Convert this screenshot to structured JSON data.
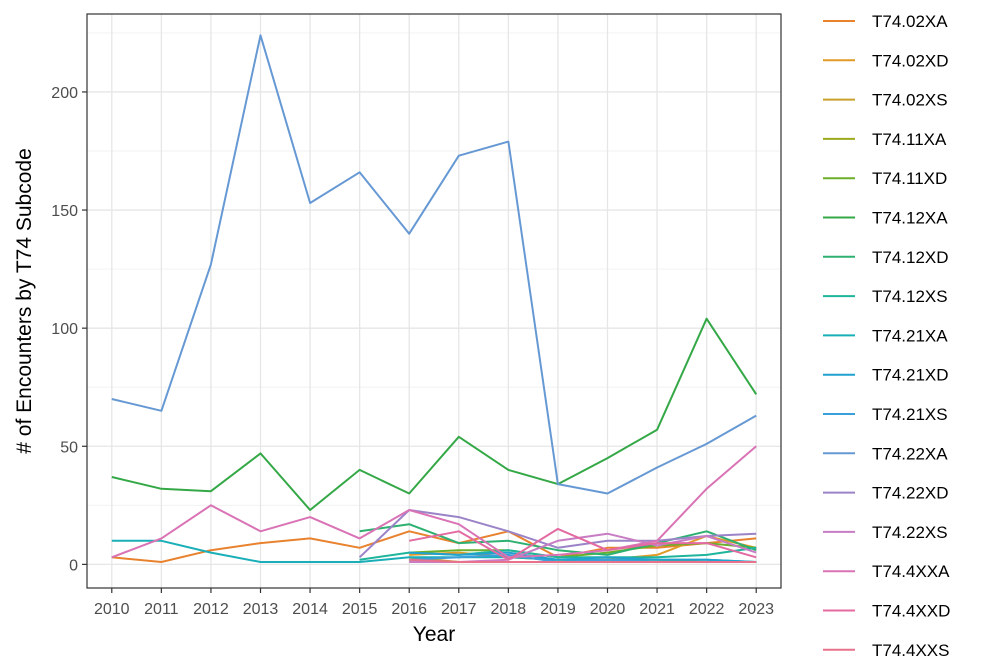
{
  "chart_data": {
    "type": "line",
    "xlabel": "Year",
    "ylabel": "# of Encounters by T74 Subcode",
    "x": [
      2010,
      2011,
      2012,
      2013,
      2014,
      2015,
      2016,
      2017,
      2018,
      2019,
      2020,
      2021,
      2022,
      2023
    ],
    "xlim": [
      2009.5,
      2023.5
    ],
    "ylim": [
      -10,
      233
    ],
    "yticks": [
      0,
      50,
      100,
      150,
      200
    ],
    "grid": true,
    "legend_position": "right",
    "series": [
      {
        "name": "T74.02XA",
        "color": "#E8822F",
        "values": [
          3,
          1,
          6,
          9,
          11,
          7,
          14,
          9,
          14,
          3,
          7,
          7,
          9,
          11
        ]
      },
      {
        "name": "T74.02XD",
        "color": "#E29A26",
        "values": [
          null,
          null,
          null,
          null,
          null,
          null,
          4,
          5,
          3,
          2,
          2,
          4,
          12,
          7
        ]
      },
      {
        "name": "T74.02XS",
        "color": "#C9A02A",
        "values": [
          null,
          null,
          null,
          null,
          null,
          null,
          3,
          1,
          1,
          1,
          2,
          2,
          1,
          1
        ]
      },
      {
        "name": "T74.11XA",
        "color": "#9DAA1E",
        "values": [
          null,
          null,
          null,
          null,
          null,
          null,
          2,
          1,
          1,
          1,
          1,
          1,
          1,
          1
        ]
      },
      {
        "name": "T74.11XD",
        "color": "#6BAF2A",
        "values": [
          null,
          null,
          null,
          null,
          null,
          null,
          5,
          6,
          6,
          3,
          5,
          8,
          9,
          7
        ]
      },
      {
        "name": "T74.12XA",
        "color": "#34A846",
        "values": [
          37,
          32,
          31,
          47,
          23,
          40,
          30,
          54,
          40,
          34,
          45,
          57,
          104,
          72
        ]
      },
      {
        "name": "T74.12XD",
        "color": "#2EB071",
        "values": [
          null,
          null,
          null,
          null,
          null,
          14,
          17,
          9,
          10,
          6,
          4,
          9,
          14,
          6
        ]
      },
      {
        "name": "T74.12XS",
        "color": "#1FB59C",
        "values": [
          null,
          null,
          null,
          null,
          null,
          2,
          5,
          4,
          6,
          3,
          3,
          3,
          4,
          7
        ]
      },
      {
        "name": "T74.21XA",
        "color": "#1AAFB8",
        "values": [
          10,
          10,
          5,
          1,
          1,
          1,
          3,
          3,
          3,
          2,
          2,
          2,
          2,
          1
        ]
      },
      {
        "name": "T74.21XD",
        "color": "#21A1CF",
        "values": [
          null,
          null,
          null,
          null,
          null,
          null,
          5,
          4,
          5,
          2,
          3,
          2,
          2,
          1
        ]
      },
      {
        "name": "T74.21XS",
        "color": "#3B9FDA",
        "values": [
          null,
          null,
          null,
          null,
          null,
          null,
          2,
          3,
          4,
          1,
          2,
          1,
          1,
          1
        ]
      },
      {
        "name": "T74.22XA",
        "color": "#6699D4",
        "values": [
          70,
          65,
          127,
          224,
          153,
          166,
          140,
          173,
          179,
          34,
          30,
          41,
          51,
          63
        ]
      },
      {
        "name": "T74.22XD",
        "color": "#9B83C8",
        "values": [
          null,
          null,
          null,
          null,
          null,
          3,
          23,
          20,
          14,
          7,
          10,
          10,
          12,
          13
        ]
      },
      {
        "name": "T74.22XS",
        "color": "#C77CC4",
        "values": [
          null,
          null,
          null,
          null,
          null,
          null,
          1,
          1,
          2,
          10,
          13,
          8,
          12,
          5
        ]
      },
      {
        "name": "T74.4XXA",
        "color": "#D973B5",
        "values": [
          3,
          11,
          25,
          14,
          20,
          11,
          23,
          17,
          3,
          4,
          6,
          10,
          32,
          50
        ]
      },
      {
        "name": "T74.4XXD",
        "color": "#E36BA2",
        "values": [
          null,
          null,
          null,
          null,
          null,
          null,
          10,
          14,
          2,
          15,
          6,
          9,
          9,
          3
        ]
      },
      {
        "name": "T74.4XXS",
        "color": "#E8728C",
        "values": [
          null,
          null,
          null,
          null,
          null,
          null,
          2,
          1,
          1,
          1,
          1,
          1,
          1,
          1
        ]
      }
    ]
  }
}
